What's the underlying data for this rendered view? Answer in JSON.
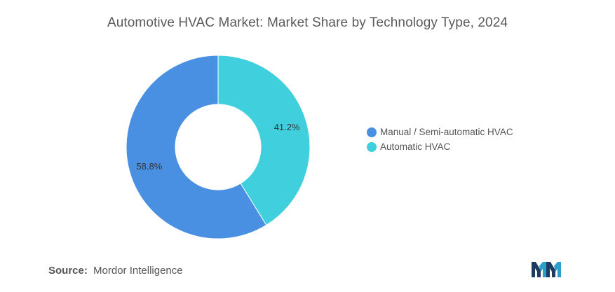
{
  "chart_data": {
    "type": "pie",
    "title": "Automotive HVAC Market: Market Share by Technology Type, 2024",
    "donut": true,
    "categories": [
      "Manual / Semi-automatic HVAC",
      "Automatic HVAC"
    ],
    "values": [
      58.8,
      41.2
    ],
    "labels": [
      "58.8%",
      "41.2%"
    ],
    "colors": [
      "#4a90e2",
      "#40d0dd"
    ],
    "legend_position": "right"
  },
  "source": {
    "label": "Source:",
    "text": "Mordor Intelligence"
  },
  "logo": {
    "icon": "mordor-intelligence-logo"
  }
}
